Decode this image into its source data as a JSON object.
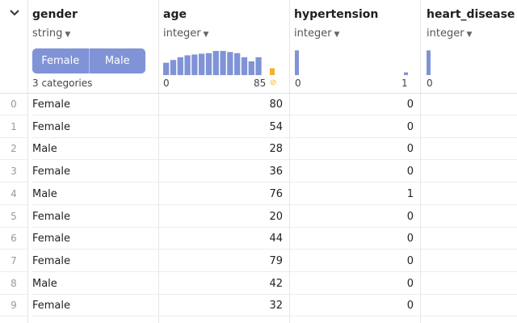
{
  "columns": {
    "gender": {
      "name": "gender",
      "type": "string",
      "segments": [
        "Female",
        "Male"
      ],
      "categories_label": "3 categories"
    },
    "age": {
      "name": "age",
      "type": "integer",
      "axis_min": "0",
      "axis_max": "85",
      "histogram": [
        0.45,
        0.55,
        0.65,
        0.72,
        0.75,
        0.78,
        0.8,
        0.88,
        0.88,
        0.84,
        0.8,
        0.65,
        0.5,
        0.65
      ],
      "missing_fraction": 0.25
    },
    "hypertension": {
      "name": "hypertension",
      "type": "integer",
      "axis_min": "0",
      "axis_max": "1",
      "histogram_low": 0.9,
      "histogram_high": 0.1
    },
    "heart_disease": {
      "name": "heart_disease",
      "type": "integer",
      "axis_min": "0",
      "histogram_low": 0.9
    }
  },
  "rows": [
    {
      "index": "0",
      "gender": "Female",
      "age": "80",
      "hypertension": "0"
    },
    {
      "index": "1",
      "gender": "Female",
      "age": "54",
      "hypertension": "0"
    },
    {
      "index": "2",
      "gender": "Male",
      "age": "28",
      "hypertension": "0"
    },
    {
      "index": "3",
      "gender": "Female",
      "age": "36",
      "hypertension": "0"
    },
    {
      "index": "4",
      "gender": "Male",
      "age": "76",
      "hypertension": "1"
    },
    {
      "index": "5",
      "gender": "Female",
      "age": "20",
      "hypertension": "0"
    },
    {
      "index": "6",
      "gender": "Female",
      "age": "44",
      "hypertension": "0"
    },
    {
      "index": "7",
      "gender": "Female",
      "age": "79",
      "hypertension": "0"
    },
    {
      "index": "8",
      "gender": "Male",
      "age": "42",
      "hypertension": "0"
    },
    {
      "index": "9",
      "gender": "Female",
      "age": "32",
      "hypertension": "0"
    }
  ],
  "colors": {
    "bar": "#8093d6",
    "missing": "#f0b429",
    "grid": "#e6e6e6"
  }
}
